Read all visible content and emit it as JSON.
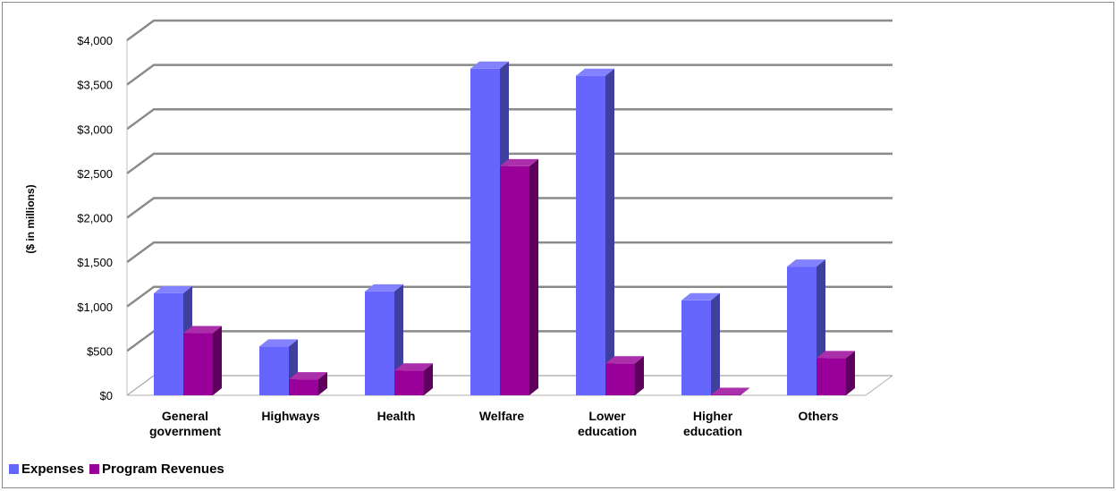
{
  "chart_data": {
    "type": "bar",
    "title": "",
    "xlabel": "",
    "ylabel": "($ in millions)",
    "ylim": [
      0,
      4000
    ],
    "yticks": [
      0,
      500,
      1000,
      1500,
      2000,
      2500,
      3000,
      3500,
      4000
    ],
    "ytick_labels": [
      "$0",
      "$500",
      "$1,000",
      "$1,500",
      "$2,000",
      "$2,500",
      "$3,000",
      "$3,500",
      "$4,000"
    ],
    "categories": [
      [
        "General",
        "government"
      ],
      [
        "Highways"
      ],
      [
        "Health"
      ],
      [
        "Welfare"
      ],
      [
        "Lower",
        "education"
      ],
      [
        "Higher",
        "education"
      ],
      [
        "Others"
      ]
    ],
    "series": [
      {
        "name": "Expenses",
        "color": "#6666ff",
        "values": [
          1150,
          550,
          1170,
          3680,
          3600,
          1070,
          1450
        ]
      },
      {
        "name": "Program Revenues",
        "color": "#990099",
        "values": [
          700,
          180,
          280,
          2580,
          360,
          5,
          420
        ]
      }
    ],
    "grid": true,
    "legend_position": "bottom-left",
    "style": "3d-clustered-column"
  }
}
